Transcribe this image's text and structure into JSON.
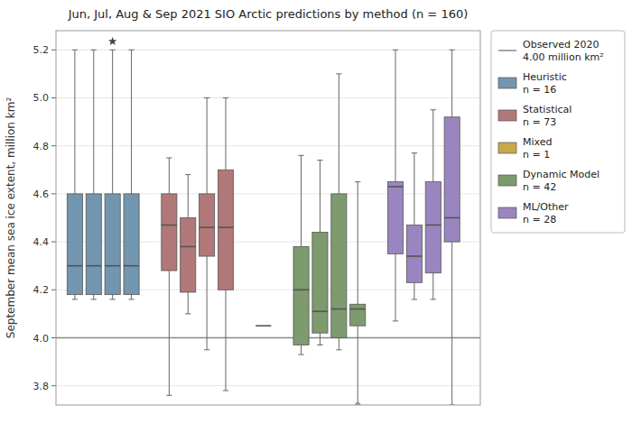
{
  "chart_data": {
    "type": "box",
    "title": "Jun, Jul, Aug & Sep 2021 SIO Arctic predictions by method (n = 160)",
    "ylabel": "September mean sea ice extent, million km²",
    "ylim": [
      3.72,
      5.28
    ],
    "yticks": [
      3.8,
      {
        "value": 4.0,
        "label": "4.0"
      },
      4.2,
      4.4,
      4.6,
      4.8,
      {
        "value": 5.0,
        "label": "5.0"
      },
      5.2
    ],
    "grid": true,
    "legend": "right",
    "tick_labels": "y",
    "reference_lines": [
      {
        "name": "Observed 2020\n4.00 million km²",
        "value": 4.0
      }
    ],
    "series": [
      {
        "name": "Heuristic\nn = 16",
        "color": "#7396b0",
        "values": [
          {
            "whislo": 4.16,
            "q1": 4.18,
            "med": 4.3,
            "q3": 4.6,
            "whishi": 5.2,
            "fliers": []
          },
          {
            "whislo": 4.16,
            "q1": 4.18,
            "med": 4.3,
            "q3": 4.6,
            "whishi": 5.2,
            "fliers": []
          },
          {
            "whislo": 4.16,
            "q1": 4.18,
            "med": 4.3,
            "q3": 4.6,
            "whishi": 5.2,
            "fliers": []
          },
          {
            "whislo": 4.16,
            "q1": 4.18,
            "med": 4.3,
            "q3": 4.6,
            "whishi": 5.2,
            "fliers": []
          }
        ],
        "outliers": [
          {
            "index": 2,
            "value": 5.235
          }
        ]
      },
      {
        "name": "Statistical\nn = 73",
        "color": "#b07878",
        "values": [
          {
            "whislo": 3.76,
            "q1": 4.28,
            "med": 4.47,
            "q3": 4.6,
            "whishi": 4.75,
            "fliers": []
          },
          {
            "whislo": 4.1,
            "q1": 4.19,
            "med": 4.38,
            "q3": 4.5,
            "whishi": 4.68,
            "fliers": []
          },
          {
            "whislo": 3.95,
            "q1": 4.34,
            "med": 4.46,
            "q3": 4.6,
            "whishi": 5.0,
            "fliers": []
          },
          {
            "whislo": 3.78,
            "q1": 4.2,
            "med": 4.46,
            "q3": 4.7,
            "whishi": 5.0,
            "fliers": []
          }
        ]
      },
      {
        "name": "Mixed\nn = 1",
        "color": "#c9a84c",
        "values": [
          {
            "med": 4.05
          }
        ]
      },
      {
        "name": "Dynamic Model\nn = 42",
        "color": "#7d9b6e",
        "values": [
          {
            "whislo": 3.93,
            "q1": 3.97,
            "med": 4.2,
            "q3": 4.38,
            "whishi": 4.76,
            "fliers": []
          },
          {
            "whislo": 3.97,
            "q1": 4.02,
            "med": 4.11,
            "q3": 4.44,
            "whishi": 4.74,
            "fliers": []
          },
          {
            "whislo": 3.95,
            "q1": 4.0,
            "med": 4.12,
            "q3": 4.6,
            "whishi": 5.1,
            "fliers": []
          },
          {
            "whislo": 3.72,
            "q1": 4.05,
            "med": 4.12,
            "q3": 4.14,
            "whishi": 4.65,
            "fliers": [
              3.72
            ]
          }
        ]
      },
      {
        "name": "ML/Other\nn = 28",
        "color": "#9b85c0",
        "values": [
          {
            "whislo": 4.07,
            "q1": 4.35,
            "med": 4.63,
            "q3": 4.65,
            "whishi": 5.2,
            "fliers": []
          },
          {
            "whislo": 4.16,
            "q1": 4.23,
            "med": 4.34,
            "q3": 4.47,
            "whishi": 4.77,
            "fliers": []
          },
          {
            "whislo": 4.16,
            "q1": 4.27,
            "med": 4.47,
            "q3": 4.65,
            "whishi": 4.95,
            "fliers": []
          },
          {
            "whislo": 3.72,
            "q1": 4.4,
            "med": 4.5,
            "q3": 4.92,
            "whishi": 5.2,
            "fliers": []
          }
        ]
      }
    ]
  }
}
